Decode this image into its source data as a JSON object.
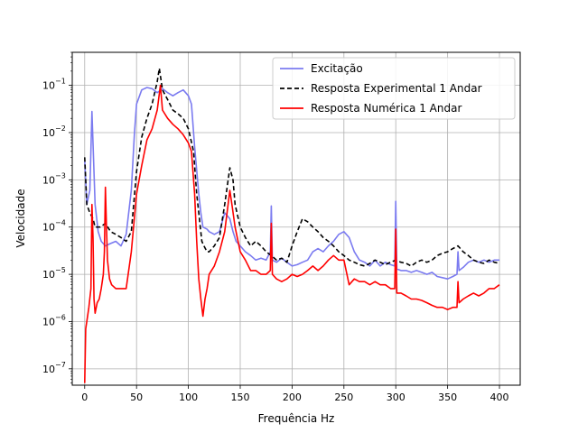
{
  "chart_data": {
    "type": "line",
    "title": "",
    "xlabel": "Frequência Hz",
    "ylabel": "Velocidade",
    "xlim": [
      -12,
      420
    ],
    "ylim": [
      4.5e-08,
      0.5
    ],
    "yscale": "log",
    "grid": true,
    "legend_position": "top-right",
    "x_ticks": [
      0,
      50,
      100,
      150,
      200,
      250,
      300,
      350,
      400
    ],
    "x_tick_labels": [
      "0",
      "50",
      "100",
      "150",
      "200",
      "250",
      "300",
      "350",
      "400"
    ],
    "y_ticks": [
      1e-07,
      1e-06,
      1e-05,
      0.0001,
      0.001,
      0.01,
      0.1
    ],
    "y_tick_mantissa": [
      "10",
      "10",
      "10",
      "10",
      "10",
      "10",
      "10"
    ],
    "y_tick_exponents": [
      "−7",
      "−6",
      "−5",
      "−4",
      "−3",
      "−2",
      "−1"
    ],
    "series": [
      {
        "name": "Excitação",
        "color": "#7b7bf0",
        "style": "solid",
        "x": [
          0,
          2,
          5,
          7,
          10,
          13,
          16,
          20,
          25,
          30,
          35,
          40,
          45,
          48,
          50,
          55,
          60,
          65,
          70,
          75,
          80,
          85,
          90,
          95,
          100,
          103,
          106,
          110,
          112,
          114,
          118,
          120,
          125,
          130,
          135,
          138,
          140,
          143,
          146,
          150,
          155,
          160,
          165,
          170,
          175,
          179,
          180,
          181,
          185,
          190,
          195,
          200,
          205,
          210,
          215,
          220,
          225,
          230,
          235,
          240,
          245,
          250,
          255,
          260,
          265,
          270,
          275,
          280,
          285,
          290,
          295,
          299,
          300,
          301,
          305,
          310,
          315,
          320,
          325,
          330,
          335,
          340,
          345,
          350,
          355,
          359,
          360,
          361,
          365,
          370,
          375,
          380,
          385,
          390,
          395,
          400
        ],
        "y": [
          0.0025,
          0.0003,
          0.0006,
          0.028,
          0.0003,
          8e-05,
          5e-05,
          4e-05,
          4.5e-05,
          5e-05,
          4e-05,
          7e-05,
          0.0006,
          0.01,
          0.04,
          0.08,
          0.09,
          0.085,
          0.07,
          0.085,
          0.07,
          0.06,
          0.07,
          0.08,
          0.06,
          0.04,
          0.005,
          0.0005,
          0.0002,
          0.0001,
          9e-05,
          8e-05,
          7e-05,
          8e-05,
          0.0002,
          0.00017,
          0.00015,
          8e-05,
          5e-05,
          4e-05,
          3e-05,
          2.5e-05,
          2e-05,
          2.2e-05,
          2e-05,
          3e-05,
          0.00028,
          2e-05,
          1.8e-05,
          2.2e-05,
          1.8e-05,
          1.5e-05,
          1.6e-05,
          1.8e-05,
          2e-05,
          3e-05,
          3.5e-05,
          3e-05,
          4e-05,
          5e-05,
          7e-05,
          8e-05,
          6e-05,
          3e-05,
          2e-05,
          1.8e-05,
          1.5e-05,
          2e-05,
          1.5e-05,
          1.8e-05,
          1.6e-05,
          1.5e-05,
          0.00035,
          1.3e-05,
          1.2e-05,
          1.2e-05,
          1.1e-05,
          1.2e-05,
          1.1e-05,
          1e-05,
          1.1e-05,
          9e-06,
          8.5e-06,
          8e-06,
          9e-06,
          1e-05,
          3e-05,
          1.2e-05,
          1.4e-05,
          1.8e-05,
          2e-05,
          1.8e-05,
          2e-05,
          1.8e-05,
          2e-05,
          2e-05
        ]
      },
      {
        "name": "Resposta Experimental 1 Andar",
        "color": "#000000",
        "style": "dashed",
        "x": [
          0,
          2,
          5,
          8,
          10,
          15,
          20,
          25,
          30,
          35,
          40,
          45,
          50,
          55,
          60,
          65,
          70,
          72,
          75,
          80,
          85,
          90,
          95,
          100,
          105,
          108,
          110,
          113,
          115,
          118,
          120,
          125,
          130,
          135,
          140,
          143,
          145,
          150,
          155,
          160,
          165,
          170,
          175,
          180,
          185,
          190,
          195,
          200,
          205,
          210,
          215,
          220,
          225,
          230,
          235,
          240,
          245,
          250,
          255,
          260,
          265,
          270,
          275,
          280,
          285,
          290,
          295,
          300,
          305,
          310,
          315,
          320,
          325,
          330,
          335,
          340,
          345,
          350,
          355,
          360,
          365,
          370,
          375,
          380,
          385,
          390,
          395,
          400
        ],
        "y": [
          0.003,
          0.0003,
          0.0002,
          0.00015,
          0.0001,
          0.0001,
          0.00012,
          8e-05,
          7e-05,
          6e-05,
          5e-05,
          8e-05,
          0.0015,
          0.008,
          0.02,
          0.04,
          0.12,
          0.23,
          0.08,
          0.05,
          0.03,
          0.025,
          0.02,
          0.012,
          0.004,
          0.0005,
          0.0002,
          5e-05,
          4e-05,
          3e-05,
          3e-05,
          4e-05,
          6e-05,
          0.0003,
          0.0018,
          0.001,
          0.0003,
          0.0001,
          6e-05,
          4e-05,
          5e-05,
          4e-05,
          3e-05,
          2.5e-05,
          2e-05,
          2.2e-05,
          1.8e-05,
          4e-05,
          8e-05,
          0.00015,
          0.00013,
          0.0001,
          8e-05,
          6e-05,
          5e-05,
          4e-05,
          3e-05,
          2.5e-05,
          2e-05,
          1.8e-05,
          1.6e-05,
          1.5e-05,
          1.7e-05,
          2e-05,
          1.8e-05,
          1.6e-05,
          1.8e-05,
          2e-05,
          1.8e-05,
          1.7e-05,
          1.5e-05,
          1.8e-05,
          2e-05,
          1.8e-05,
          2e-05,
          2.5e-05,
          2.8e-05,
          3e-05,
          3.5e-05,
          4e-05,
          3e-05,
          2.5e-05,
          2e-05,
          1.8e-05,
          1.7e-05,
          2e-05,
          1.8e-05,
          1.7e-05
        ]
      },
      {
        "name": "Resposta Numérica 1 Andar",
        "color": "#ff0000",
        "style": "solid",
        "x": [
          0,
          1,
          2,
          4,
          6,
          7,
          8,
          9,
          10,
          12,
          14,
          16,
          18,
          19,
          20,
          21,
          22,
          24,
          26,
          30,
          35,
          40,
          45,
          50,
          55,
          60,
          65,
          70,
          73,
          75,
          80,
          85,
          90,
          95,
          100,
          103,
          106,
          108,
          110,
          112,
          114,
          116,
          118,
          120,
          125,
          130,
          135,
          140,
          142,
          145,
          150,
          155,
          160,
          165,
          170,
          175,
          179,
          180,
          181,
          185,
          190,
          195,
          200,
          205,
          210,
          215,
          220,
          225,
          230,
          235,
          240,
          245,
          250,
          255,
          260,
          265,
          270,
          275,
          280,
          285,
          290,
          295,
          299,
          300,
          301,
          305,
          310,
          315,
          320,
          325,
          330,
          335,
          340,
          345,
          350,
          355,
          359,
          360,
          361,
          365,
          370,
          375,
          380,
          385,
          390,
          395,
          400
        ],
        "y": [
          5e-08,
          7e-07,
          1e-06,
          2e-06,
          5e-06,
          0.0003,
          6e-05,
          3e-06,
          1.5e-06,
          2.5e-06,
          3e-06,
          5e-06,
          1e-05,
          3e-05,
          0.0007,
          0.0001,
          2e-05,
          8e-06,
          6e-06,
          5e-06,
          5e-06,
          5e-06,
          3e-05,
          0.0005,
          0.002,
          0.007,
          0.012,
          0.03,
          0.1,
          0.03,
          0.02,
          0.015,
          0.012,
          0.009,
          0.006,
          0.004,
          0.0005,
          5e-05,
          8e-06,
          3e-06,
          1.3e-06,
          3e-06,
          5e-06,
          1e-05,
          1.5e-05,
          3e-05,
          8e-05,
          0.0006,
          0.0003,
          0.0001,
          3e-05,
          2e-05,
          1.2e-05,
          1.2e-05,
          1e-05,
          1e-05,
          1.2e-05,
          0.00012,
          1e-05,
          8e-06,
          7e-06,
          8e-06,
          1e-05,
          9e-06,
          1e-05,
          1.2e-05,
          1.5e-05,
          1.2e-05,
          1.5e-05,
          2e-05,
          2.5e-05,
          2e-05,
          2e-05,
          6e-06,
          8e-06,
          7e-06,
          7e-06,
          6e-06,
          7e-06,
          6e-06,
          6e-06,
          5e-06,
          5e-06,
          9e-05,
          4e-06,
          4e-06,
          3.5e-06,
          3e-06,
          3e-06,
          2.8e-06,
          2.5e-06,
          2.2e-06,
          2e-06,
          2e-06,
          1.8e-06,
          2e-06,
          2e-06,
          7e-06,
          2.5e-06,
          3e-06,
          3.5e-06,
          4e-06,
          3.5e-06,
          4e-06,
          5e-06,
          5e-06,
          6e-06
        ]
      }
    ]
  }
}
